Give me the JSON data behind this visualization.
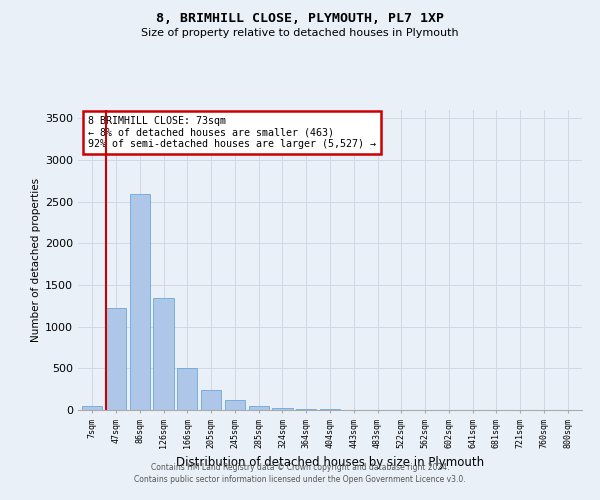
{
  "title1": "8, BRIMHILL CLOSE, PLYMOUTH, PL7 1XP",
  "title2": "Size of property relative to detached houses in Plymouth",
  "xlabel": "Distribution of detached houses by size in Plymouth",
  "ylabel": "Number of detached properties",
  "categories": [
    "7sqm",
    "47sqm",
    "86sqm",
    "126sqm",
    "166sqm",
    "205sqm",
    "245sqm",
    "285sqm",
    "324sqm",
    "364sqm",
    "404sqm",
    "443sqm",
    "483sqm",
    "522sqm",
    "562sqm",
    "602sqm",
    "641sqm",
    "681sqm",
    "721sqm",
    "760sqm",
    "800sqm"
  ],
  "values": [
    50,
    1230,
    2590,
    1340,
    500,
    240,
    120,
    50,
    30,
    15,
    10,
    5,
    3,
    2,
    1,
    1,
    0,
    0,
    0,
    0,
    0
  ],
  "bar_color": "#aec6e8",
  "bar_edge_color": "#5a9fd4",
  "vline_x_index": 1,
  "annotation_text": "8 BRIMHILL CLOSE: 73sqm\n← 8% of detached houses are smaller (463)\n92% of semi-detached houses are larger (5,527) →",
  "annotation_box_color": "#ffffff",
  "annotation_box_edge": "#cc0000",
  "vline_color": "#cc0000",
  "grid_color": "#d0d8e8",
  "background_color": "#eaf0f8",
  "footer1": "Contains HM Land Registry data © Crown copyright and database right 2024.",
  "footer2": "Contains public sector information licensed under the Open Government Licence v3.0.",
  "ylim": [
    0,
    3600
  ],
  "yticks": [
    0,
    500,
    1000,
    1500,
    2000,
    2500,
    3000,
    3500
  ]
}
